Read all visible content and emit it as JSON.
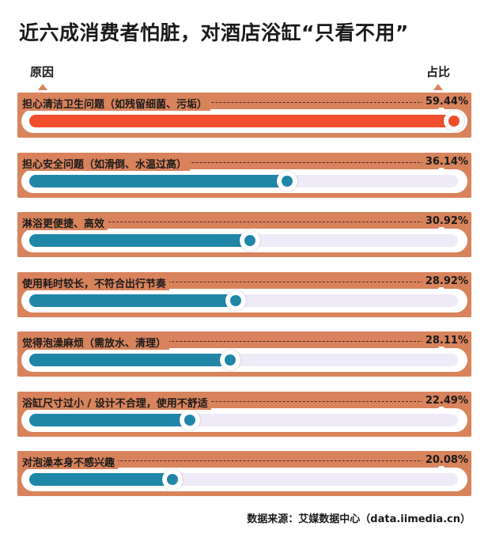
{
  "title": "近六成消费者怕脏，对酒店浴缸“只看不用”",
  "header": {
    "left_label": "原因",
    "right_label": "占比"
  },
  "source": "数据来源：艾媒数据中心（data.iimedia.cn）",
  "colors": {
    "panel": "#d8835c",
    "highlight": "#f04e2c",
    "bar": "#1f86a8",
    "track": "#efeaf7"
  },
  "chart_data": {
    "type": "bar",
    "orientation": "horizontal",
    "title": "近六成消费者怕脏，对酒店浴缸“只看不用”",
    "xlabel": "占比",
    "ylabel": "原因",
    "unit": "%",
    "xlim": [
      0,
      60
    ],
    "categories": [
      "担心清洁卫生问题（如残留细菌、污垢）",
      "担心安全问题（如滑倒、水温过高）",
      "淋浴更便捷、高效",
      "使用耗时较长，不符合出行节奏",
      "觉得泡澡麻烦（需放水、清理）",
      "浴缸尺寸过小 / 设计不合理，使用不舒适",
      "对泡澡本身不感兴趣"
    ],
    "values": [
      59.44,
      36.14,
      30.92,
      28.92,
      28.11,
      22.49,
      20.08
    ],
    "value_labels": [
      "59.44%",
      "36.14%",
      "30.92%",
      "28.92%",
      "28.11%",
      "22.49%",
      "20.08%"
    ]
  }
}
